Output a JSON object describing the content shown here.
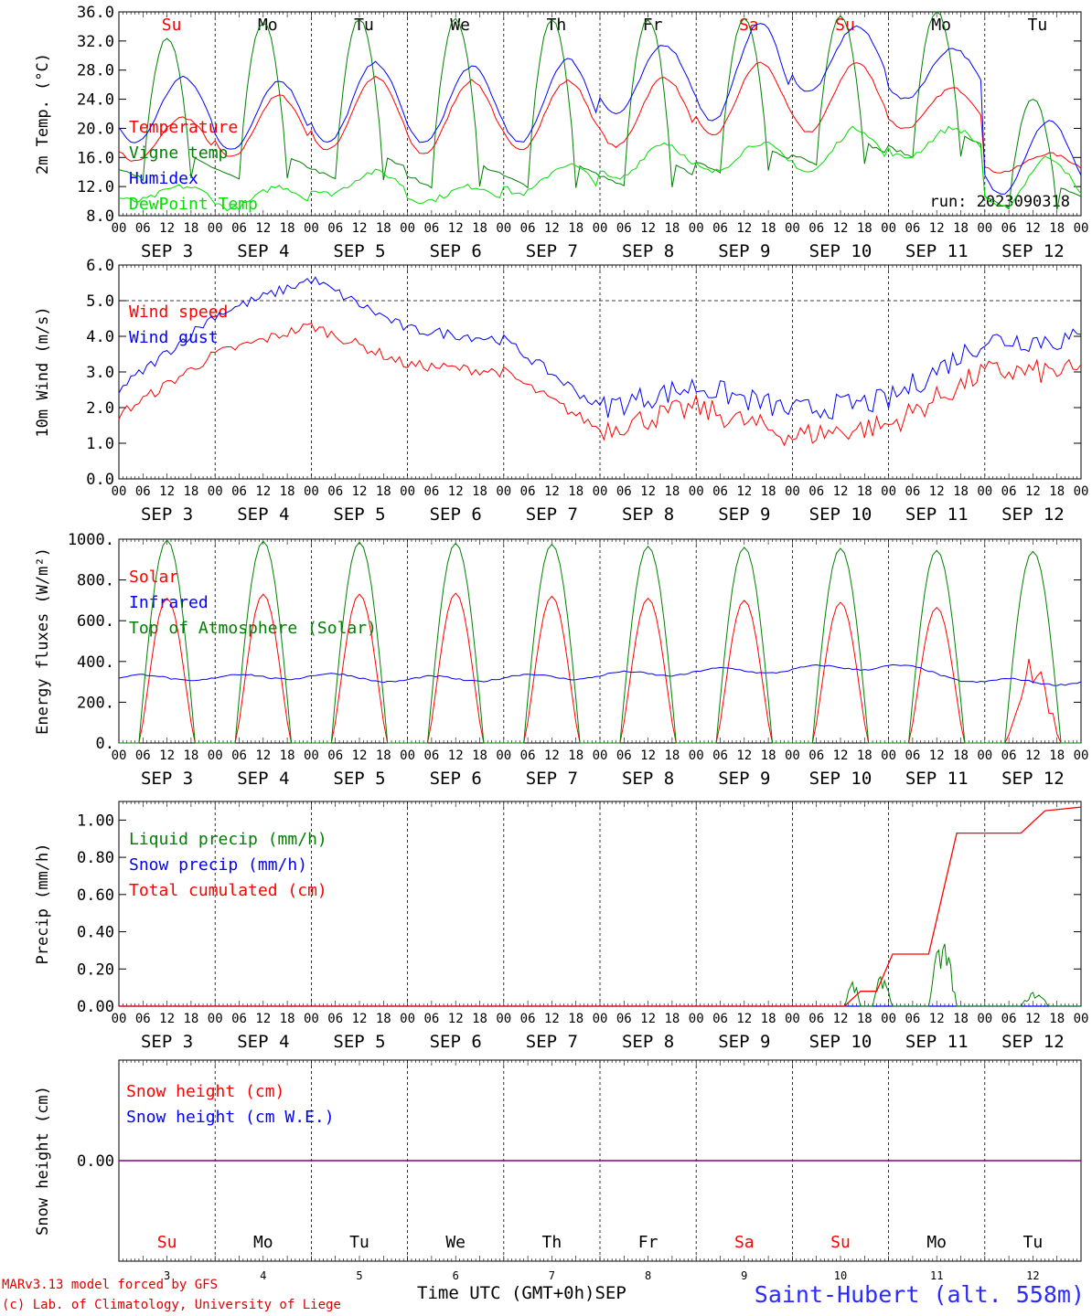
{
  "credits": {
    "line1": "MARv3.13 model forced by GFS",
    "line2": "(c) Lab. of Climatology, University of Liege"
  },
  "footer": {
    "time_label": "Time UTC (GMT+0h)",
    "month": "SEP",
    "station": "Saint-Hubert (alt. 558m)",
    "day_numbers": [
      "3",
      "4",
      "5",
      "6",
      "7",
      "8",
      "9",
      "10",
      "11",
      "12"
    ]
  },
  "run_label": "run: 2023090318",
  "days": [
    {
      "abbr": "Su",
      "date": "SEP  3",
      "weekend": true
    },
    {
      "abbr": "Mo",
      "date": "SEP  4",
      "weekend": false
    },
    {
      "abbr": "Tu",
      "date": "SEP  5",
      "weekend": false
    },
    {
      "abbr": "We",
      "date": "SEP  6",
      "weekend": false
    },
    {
      "abbr": "Th",
      "date": "SEP  7",
      "weekend": false
    },
    {
      "abbr": "Fr",
      "date": "SEP  8",
      "weekend": false
    },
    {
      "abbr": "Sa",
      "date": "SEP  9",
      "weekend": true
    },
    {
      "abbr": "Su",
      "date": "SEP 10",
      "weekend": true
    },
    {
      "abbr": "Mo",
      "date": "SEP 11",
      "weekend": false
    },
    {
      "abbr": "Tu",
      "date": "SEP 12",
      "weekend": false
    }
  ],
  "hour_ticks": [
    "00",
    "06",
    "12",
    "18"
  ],
  "colors": {
    "red": "#ff0000",
    "green": "#008000",
    "blue": "#0000ff",
    "lime": "#00e000",
    "purple": "#800080"
  },
  "chart_data": [
    {
      "type": "line",
      "ylabel": "2m Temp. (°C)",
      "ylim": [
        8,
        36
      ],
      "yticks": [
        "8.0",
        "12.0",
        "16.0",
        "20.0",
        "24.0",
        "28.0",
        "32.0",
        "36.0"
      ],
      "series": [
        {
          "name": "Temperature",
          "color": "#ff0000",
          "tmin": [
            15.5,
            16,
            17,
            16.5,
            17,
            17.5,
            19,
            19.5,
            20,
            14
          ],
          "tmax": [
            21.5,
            24.5,
            27,
            26.5,
            26.5,
            27,
            29,
            29,
            25.5,
            16.5
          ]
        },
        {
          "name": "Vigne temp",
          "color": "#008000",
          "tmin": [
            13,
            13,
            13,
            12,
            12,
            12,
            14,
            15,
            16,
            9
          ],
          "tmax": [
            32.5,
            34.5,
            35,
            35,
            35,
            35,
            35,
            35.5,
            36,
            24
          ]
        },
        {
          "name": "Humidex",
          "color": "#0000ff",
          "tmin": [
            18,
            17,
            18,
            18,
            18,
            22,
            21,
            25,
            24,
            11
          ],
          "tmax": [
            27,
            26.5,
            29,
            28.5,
            29.5,
            31.5,
            34.5,
            34,
            31,
            21
          ]
        },
        {
          "name": "DewPoint Temp",
          "color": "#00e000",
          "tmin": [
            10,
            9,
            11,
            10,
            11,
            13,
            14,
            14,
            16,
            9
          ],
          "tmax": [
            12,
            12,
            14,
            12,
            15,
            18,
            18,
            20,
            20,
            16
          ]
        }
      ]
    },
    {
      "type": "line",
      "ylabel": "10m Wind (m/s)",
      "ylim": [
        0,
        6
      ],
      "yticks": [
        "0.0",
        "1.0",
        "2.0",
        "3.0",
        "4.0",
        "5.0",
        "6.0"
      ],
      "series": [
        {
          "name": "Wind speed",
          "color": "#ff0000",
          "daily": [
            1.8,
            3.5,
            4.3,
            3.2,
            3.0,
            1.4,
            2.0,
            1.2,
            1.5,
            3.0
          ]
        },
        {
          "name": "Wind gust",
          "color": "#0000ff",
          "daily": [
            2.5,
            4.6,
            5.6,
            4.2,
            3.9,
            2.0,
            2.6,
            1.9,
            2.2,
            3.9
          ]
        }
      ]
    },
    {
      "type": "line",
      "ylabel": "Energy fluxes (W/m²)",
      "ylim": [
        0,
        1000
      ],
      "yticks": [
        "0.",
        "200.",
        "400.",
        "600.",
        "800.",
        "1000."
      ],
      "series": [
        {
          "name": "Solar",
          "color": "#ff0000",
          "daily_peak": [
            710,
            730,
            730,
            735,
            720,
            710,
            700,
            690,
            665,
            420
          ]
        },
        {
          "name": "Infrared",
          "color": "#0000ff",
          "daily": [
            320,
            320,
            330,
            310,
            320,
            330,
            350,
            360,
            380,
            300
          ]
        },
        {
          "name": "Top of Atmosphere (Solar)",
          "color": "#008000",
          "daily_peak": [
            995,
            990,
            985,
            980,
            975,
            965,
            960,
            955,
            945,
            940
          ]
        }
      ]
    },
    {
      "type": "line",
      "ylabel": "Precip (mm/h)",
      "ylim": [
        0,
        1.1
      ],
      "yticks": [
        "0.00",
        "0.20",
        "0.40",
        "0.60",
        "0.80",
        "1.00"
      ],
      "series": [
        {
          "name": "Liquid precip (mm/h)",
          "color": "#008000",
          "peaks": [
            0.14,
            0.18,
            0.37,
            0.08
          ]
        },
        {
          "name": "Snow precip (mm/h)",
          "color": "#0000ff",
          "value": 0
        },
        {
          "name": "Total cumulated (cm)",
          "color": "#ff0000",
          "steps": [
            0.08,
            0.28,
            0.93,
            1.07
          ]
        }
      ]
    },
    {
      "type": "line",
      "ylabel": "Snow height (cm)",
      "ylim": [
        -1,
        1
      ],
      "yticks": [
        "0.00"
      ],
      "series": [
        {
          "name": "Snow height (cm)",
          "color": "#ff0000",
          "value": 0
        },
        {
          "name": "Snow height (cm W.E.)",
          "color": "#0000ff",
          "value": 0
        }
      ]
    }
  ]
}
